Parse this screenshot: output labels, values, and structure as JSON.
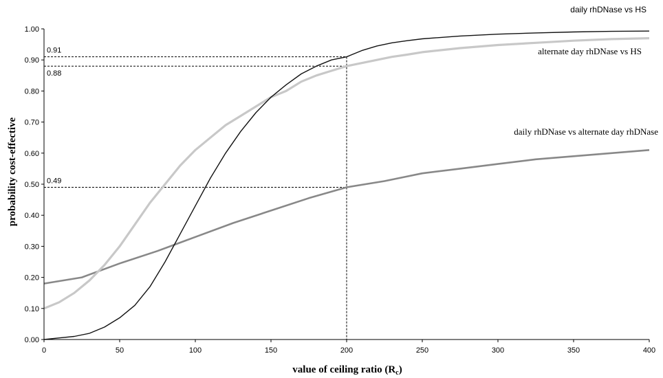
{
  "chart_data": {
    "type": "line",
    "xlabel": "value of ceiling ratio (R",
    "xlabel_sub": "c",
    "xlabel_close": ")",
    "ylabel": "probability cost-effective",
    "xlim": [
      0,
      400
    ],
    "ylim": [
      0,
      1
    ],
    "x_ticks": [
      0,
      50,
      100,
      150,
      200,
      250,
      300,
      350,
      400
    ],
    "x_tick_labels": [
      "0",
      "50",
      "100",
      "150",
      "200",
      "250",
      "300",
      "350",
      "400"
    ],
    "y_ticks": [
      0,
      0.1,
      0.2,
      0.3,
      0.4,
      0.5,
      0.6,
      0.7,
      0.8,
      0.9,
      1.0
    ],
    "y_tick_labels": [
      "0.00",
      "0.10",
      "0.20",
      "0.30",
      "0.40",
      "0.50",
      "0.60",
      "0.70",
      "0.80",
      "0.90",
      "1.00"
    ],
    "grid": false,
    "legend": "none",
    "series": [
      {
        "name": "daily rhDNase vs HS",
        "color": "#111111",
        "x": [
          0,
          10,
          20,
          30,
          40,
          50,
          60,
          70,
          80,
          90,
          100,
          110,
          120,
          130,
          140,
          150,
          160,
          170,
          180,
          190,
          200,
          210,
          220,
          230,
          240,
          250,
          275,
          300,
          325,
          350,
          375,
          400
        ],
        "y": [
          0.0,
          0.005,
          0.01,
          0.02,
          0.04,
          0.07,
          0.11,
          0.17,
          0.25,
          0.34,
          0.43,
          0.52,
          0.6,
          0.67,
          0.73,
          0.78,
          0.82,
          0.855,
          0.88,
          0.9,
          0.91,
          0.93,
          0.945,
          0.955,
          0.962,
          0.968,
          0.977,
          0.983,
          0.987,
          0.99,
          0.992,
          0.993
        ]
      },
      {
        "name": "alternate day rhDNase vs HS",
        "color": "#c8c8c8",
        "x": [
          0,
          10,
          20,
          30,
          40,
          50,
          60,
          70,
          80,
          90,
          100,
          110,
          120,
          130,
          140,
          150,
          160,
          170,
          180,
          190,
          200,
          210,
          220,
          230,
          240,
          250,
          275,
          300,
          325,
          350,
          375,
          400
        ],
        "y": [
          0.1,
          0.12,
          0.15,
          0.19,
          0.24,
          0.3,
          0.37,
          0.44,
          0.5,
          0.56,
          0.61,
          0.65,
          0.69,
          0.72,
          0.75,
          0.78,
          0.8,
          0.83,
          0.85,
          0.865,
          0.88,
          0.89,
          0.9,
          0.91,
          0.917,
          0.925,
          0.938,
          0.948,
          0.955,
          0.962,
          0.967,
          0.97
        ]
      },
      {
        "name": "daily rhDNase vs alternate day rhDNase",
        "color": "#888888",
        "x": [
          0,
          25,
          50,
          75,
          100,
          125,
          150,
          175,
          200,
          225,
          250,
          275,
          300,
          325,
          350,
          375,
          400
        ],
        "y": [
          0.18,
          0.2,
          0.245,
          0.285,
          0.33,
          0.375,
          0.415,
          0.455,
          0.49,
          0.51,
          0.535,
          0.55,
          0.565,
          0.58,
          0.59,
          0.6,
          0.61
        ]
      }
    ],
    "annotations": [
      {
        "label": "0.91",
        "x": 200,
        "y": 0.91
      },
      {
        "label": "0.88",
        "x": 200,
        "y": 0.88
      },
      {
        "label": "0.49",
        "x": 200,
        "y": 0.49
      }
    ]
  }
}
